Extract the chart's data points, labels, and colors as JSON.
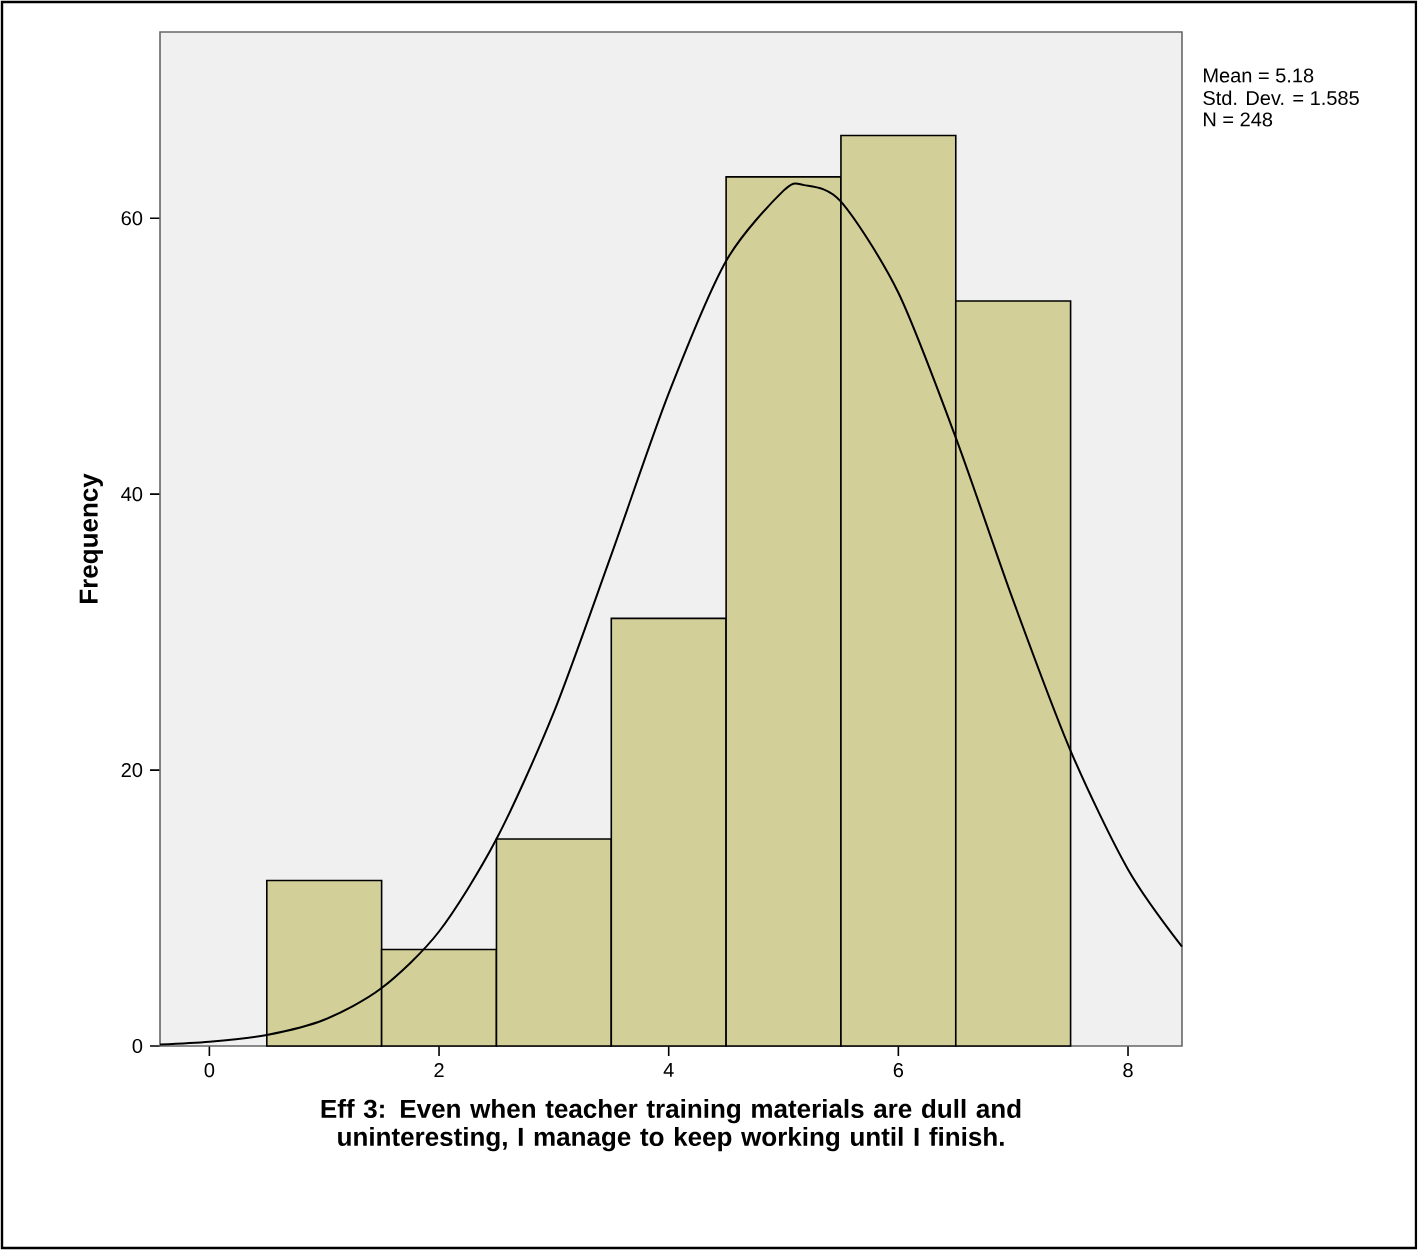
{
  "chart_data": {
    "type": "histogram",
    "xlabel": "Eff 3: Even when teacher training materials are dull and uninteresting, I manage to keep working until I finish.",
    "ylabel": "Frequency",
    "annotations": [
      "Mean = 5.18",
      "Std. Dev. = 1.585",
      "N = 248"
    ],
    "bins": [
      0.5,
      1.5,
      2.5,
      3.5,
      4.5,
      5.5,
      6.5,
      7.5
    ],
    "values": [
      12,
      7,
      15,
      31,
      63,
      66,
      54
    ],
    "color": "#d3cf98",
    "series": [
      {
        "type": "line",
        "color": "#000000",
        "x": [
          -0.43,
          0,
          0.5,
          1,
          1.5,
          2,
          2.5,
          3,
          3.5,
          4,
          4.5,
          5,
          5.18,
          5.5,
          6,
          6.5,
          7,
          7.5,
          8,
          8.47
        ],
        "values": [
          0.1,
          0.3,
          0.8,
          1.9,
          4.2,
          8.3,
          15.0,
          24.2,
          35.6,
          47.3,
          56.9,
          62.0,
          62.4,
          61.2,
          54.6,
          44.1,
          32.3,
          21.4,
          12.8,
          7.2
        ]
      }
    ],
    "xlim": [
      -0.43,
      8.47
    ],
    "ylim": [
      0,
      73.5
    ],
    "xticks": [
      0,
      2,
      4,
      6,
      8
    ],
    "yticks": [
      0,
      20,
      40,
      60
    ],
    "grid": false
  }
}
